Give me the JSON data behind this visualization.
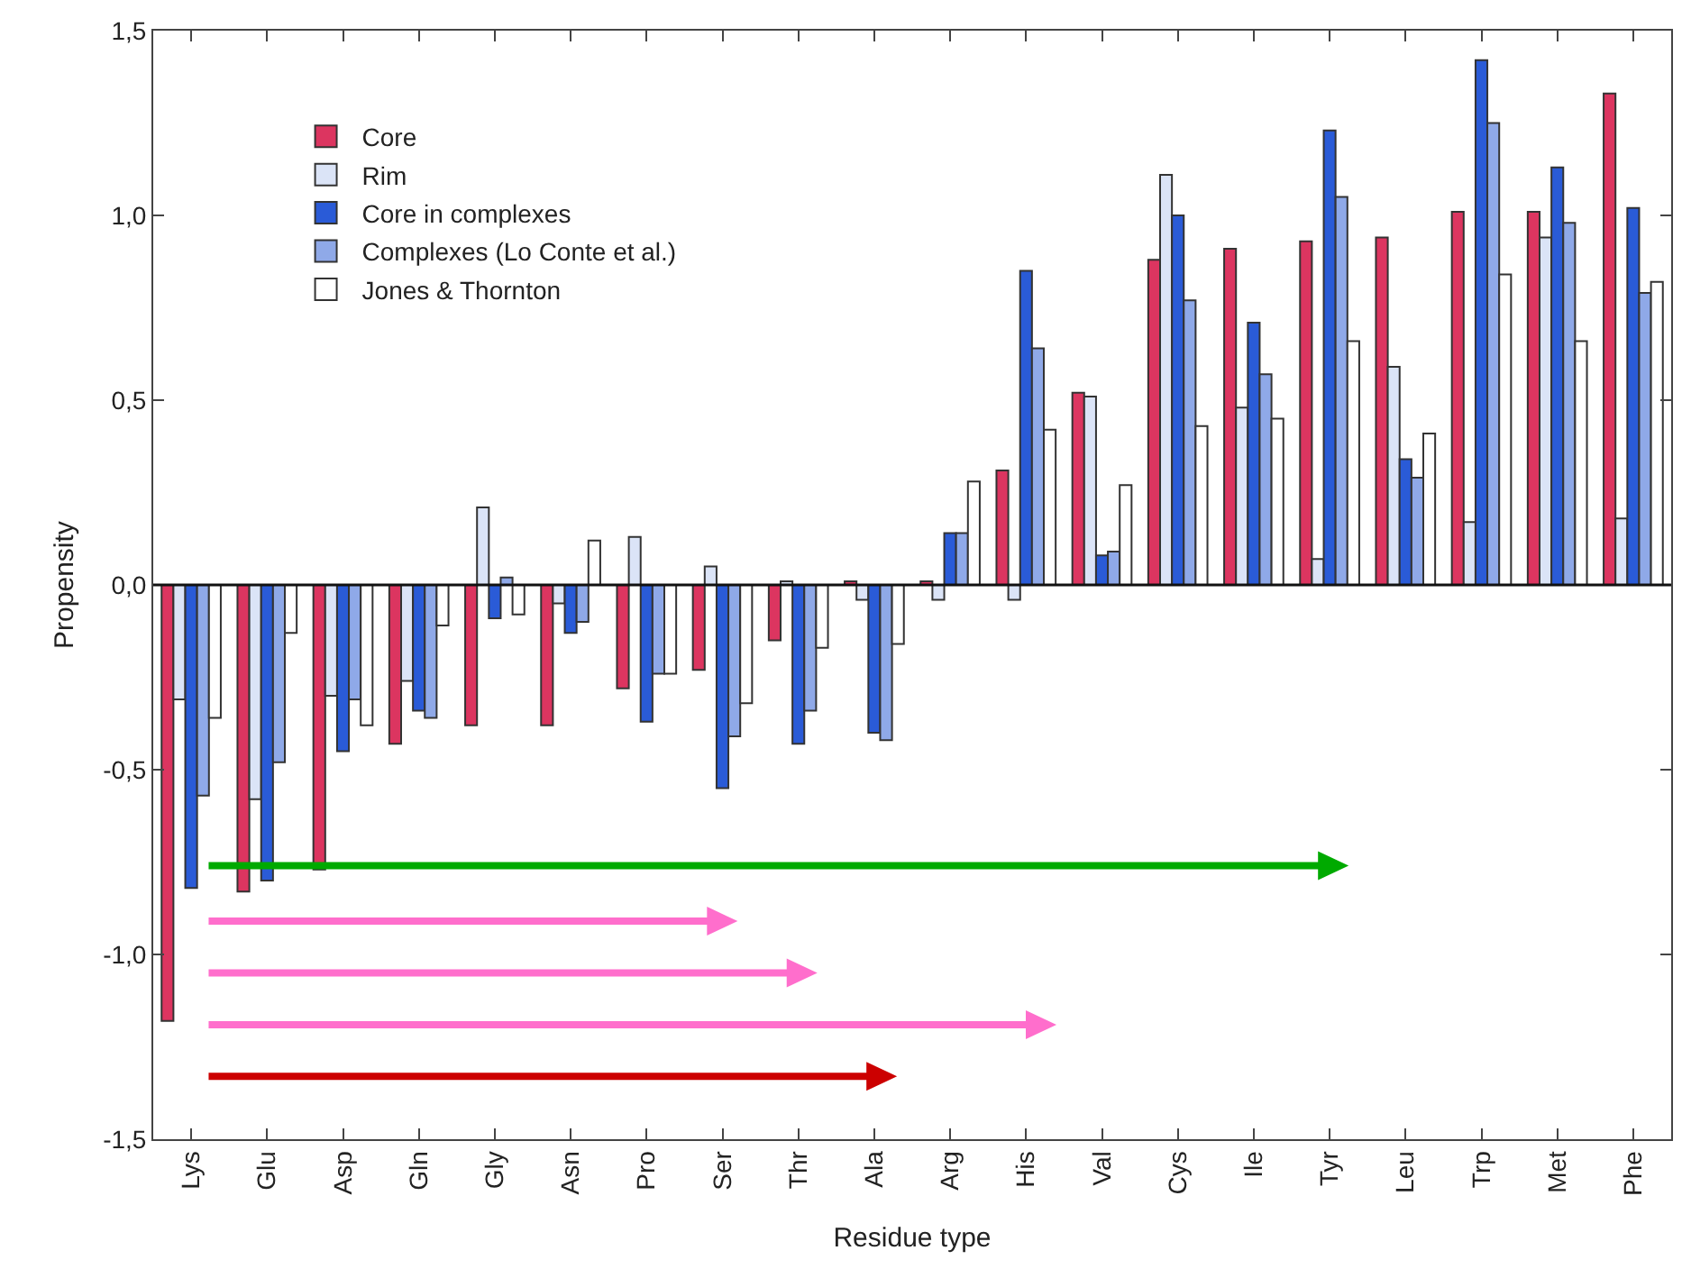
{
  "chart_data": {
    "type": "bar",
    "xlabel": "Residue type",
    "ylabel": "Propensity",
    "categories": [
      "Lys",
      "Glu",
      "Asp",
      "Gln",
      "Gly",
      "Asn",
      "Pro",
      "Ser",
      "Thr",
      "Ala",
      "Arg",
      "His",
      "Val",
      "Cys",
      "Ile",
      "Tyr",
      "Leu",
      "Trp",
      "Met",
      "Phe"
    ],
    "series": [
      {
        "name": "Core",
        "color": "#dc3560",
        "values": [
          -1.18,
          -0.83,
          -0.77,
          -0.43,
          -0.38,
          -0.38,
          -0.28,
          -0.23,
          -0.15,
          0.01,
          0.01,
          0.31,
          0.52,
          0.88,
          0.91,
          0.93,
          0.94,
          1.01,
          1.01,
          1.33
        ]
      },
      {
        "name": "Rim",
        "color": "#dbe4f7",
        "values": [
          -0.31,
          -0.58,
          -0.3,
          -0.26,
          0.21,
          -0.05,
          0.13,
          0.05,
          0.01,
          -0.04,
          -0.04,
          -0.04,
          0.51,
          1.11,
          0.48,
          0.07,
          0.59,
          0.17,
          0.94,
          0.18
        ]
      },
      {
        "name": "Core in complexes",
        "color": "#2a5bd7",
        "values": [
          -0.82,
          -0.8,
          -0.45,
          -0.34,
          -0.09,
          -0.13,
          -0.37,
          -0.55,
          -0.43,
          -0.4,
          0.14,
          0.85,
          0.08,
          1.0,
          0.71,
          1.23,
          0.34,
          1.42,
          1.13,
          1.02
        ]
      },
      {
        "name": "Complexes (Lo Conte et al.)",
        "color": "#8fa9e8",
        "values": [
          -0.57,
          -0.48,
          -0.31,
          -0.36,
          0.02,
          -0.1,
          -0.24,
          -0.41,
          -0.34,
          -0.42,
          0.14,
          0.64,
          0.09,
          0.77,
          0.57,
          1.05,
          0.29,
          1.25,
          0.98,
          0.79
        ]
      },
      {
        "name": "Jones & Thornton",
        "color": "#ffffff",
        "values": [
          -0.36,
          -0.13,
          -0.38,
          -0.11,
          -0.08,
          0.12,
          -0.24,
          -0.32,
          -0.17,
          -0.16,
          0.28,
          0.42,
          0.27,
          0.43,
          0.45,
          0.66,
          0.41,
          0.84,
          0.66,
          0.82
        ]
      }
    ],
    "ylim": [
      -1.5,
      1.5
    ],
    "yticks": [
      {
        "value": -1.5,
        "label": "-1,5"
      },
      {
        "value": -1.0,
        "label": "-1,0"
      },
      {
        "value": -0.5,
        "label": "-0,5"
      },
      {
        "value": 0,
        "label": "0,0"
      },
      {
        "value": 0.5,
        "label": "0,5"
      },
      {
        "value": 1.0,
        "label": "1,0"
      },
      {
        "value": 1.5,
        "label": "1,5"
      }
    ],
    "ref_lines": [
      {
        "axis": "y",
        "value": 0,
        "color": "#111111"
      }
    ],
    "grid": false,
    "legend": "top left"
  }
}
